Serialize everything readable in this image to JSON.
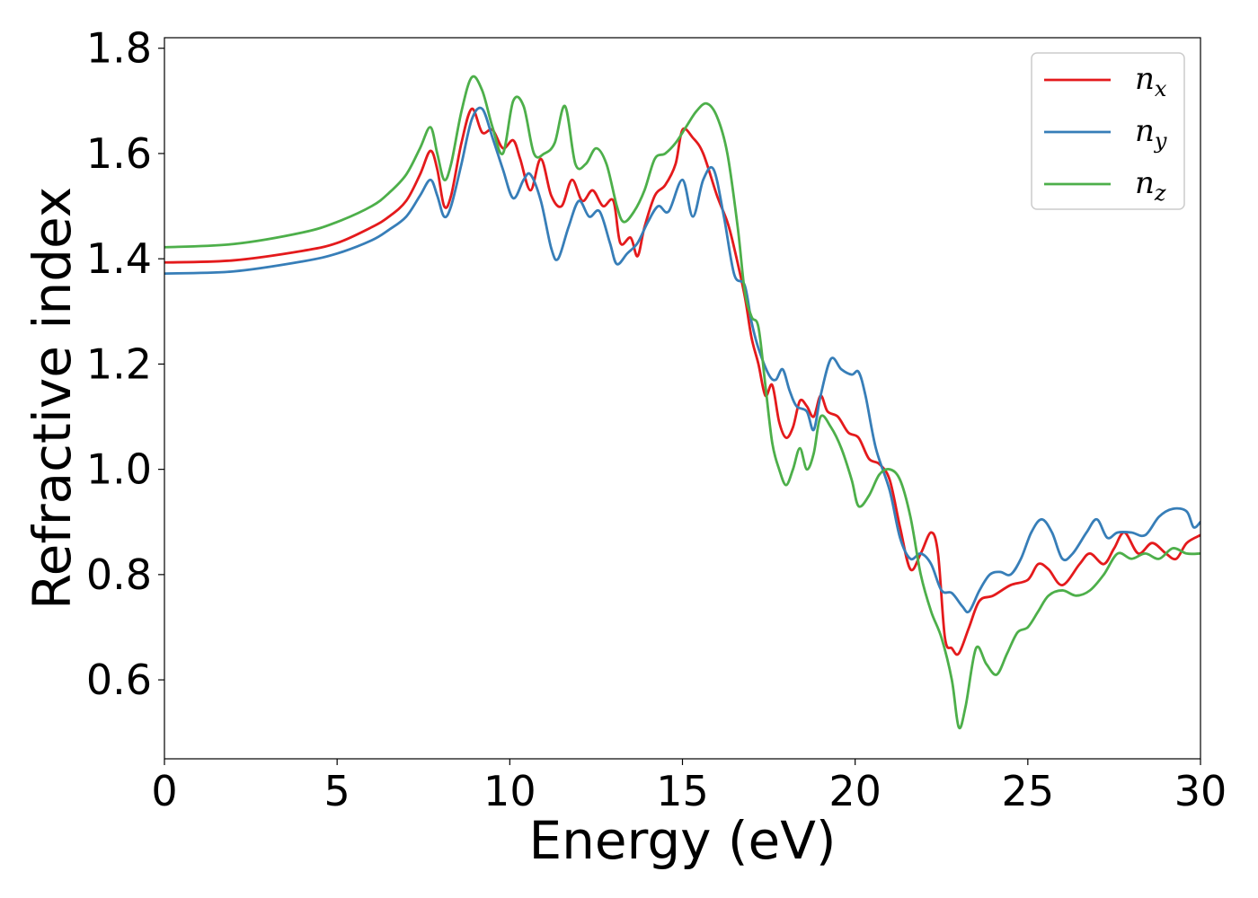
{
  "chart_data": {
    "type": "line",
    "xlabel": "Energy (eV)",
    "ylabel": "Refractive index",
    "xlim": [
      0,
      30
    ],
    "ylim": [
      0.45,
      1.82
    ],
    "xticks": [
      0,
      5,
      10,
      15,
      20,
      25,
      30
    ],
    "xtick_labels": [
      "0",
      "5",
      "10",
      "15",
      "20",
      "25",
      "30"
    ],
    "yticks": [
      0.6,
      0.8,
      1.0,
      1.2,
      1.4,
      1.6,
      1.8
    ],
    "ytick_labels": [
      "0.6",
      "0.8",
      "1.0",
      "1.2",
      "1.4",
      "1.6",
      "1.8"
    ],
    "grid": false,
    "legend_position": "top-right",
    "series": [
      {
        "name": "n",
        "subscript": "x",
        "color": "#e41a1c",
        "points": [
          [
            0,
            1.393
          ],
          [
            2,
            1.397
          ],
          [
            4,
            1.415
          ],
          [
            5,
            1.43
          ],
          [
            6,
            1.46
          ],
          [
            6.5,
            1.48
          ],
          [
            7,
            1.51
          ],
          [
            7.4,
            1.56
          ],
          [
            7.7,
            1.605
          ],
          [
            7.9,
            1.57
          ],
          [
            8.1,
            1.5
          ],
          [
            8.3,
            1.52
          ],
          [
            8.6,
            1.62
          ],
          [
            8.9,
            1.685
          ],
          [
            9.2,
            1.64
          ],
          [
            9.5,
            1.645
          ],
          [
            9.8,
            1.61
          ],
          [
            10.1,
            1.625
          ],
          [
            10.3,
            1.59
          ],
          [
            10.6,
            1.53
          ],
          [
            10.9,
            1.59
          ],
          [
            11.2,
            1.52
          ],
          [
            11.5,
            1.5
          ],
          [
            11.8,
            1.55
          ],
          [
            12.1,
            1.51
          ],
          [
            12.4,
            1.53
          ],
          [
            12.7,
            1.5
          ],
          [
            13.0,
            1.51
          ],
          [
            13.2,
            1.43
          ],
          [
            13.5,
            1.44
          ],
          [
            13.7,
            1.405
          ],
          [
            13.9,
            1.46
          ],
          [
            14.2,
            1.52
          ],
          [
            14.5,
            1.54
          ],
          [
            14.8,
            1.58
          ],
          [
            15.0,
            1.645
          ],
          [
            15.3,
            1.63
          ],
          [
            15.6,
            1.6
          ],
          [
            16.0,
            1.52
          ],
          [
            16.3,
            1.47
          ],
          [
            16.5,
            1.42
          ],
          [
            16.8,
            1.33
          ],
          [
            17.0,
            1.25
          ],
          [
            17.2,
            1.2
          ],
          [
            17.4,
            1.14
          ],
          [
            17.6,
            1.16
          ],
          [
            17.8,
            1.09
          ],
          [
            18.0,
            1.06
          ],
          [
            18.2,
            1.08
          ],
          [
            18.4,
            1.13
          ],
          [
            18.6,
            1.12
          ],
          [
            18.8,
            1.1
          ],
          [
            19.0,
            1.14
          ],
          [
            19.2,
            1.11
          ],
          [
            19.5,
            1.1
          ],
          [
            19.8,
            1.07
          ],
          [
            20.1,
            1.06
          ],
          [
            20.4,
            1.02
          ],
          [
            20.7,
            1.01
          ],
          [
            21.0,
            0.98
          ],
          [
            21.3,
            0.89
          ],
          [
            21.6,
            0.81
          ],
          [
            21.9,
            0.84
          ],
          [
            22.2,
            0.88
          ],
          [
            22.4,
            0.84
          ],
          [
            22.6,
            0.68
          ],
          [
            22.8,
            0.66
          ],
          [
            23.0,
            0.65
          ],
          [
            23.3,
            0.7
          ],
          [
            23.6,
            0.75
          ],
          [
            24.0,
            0.76
          ],
          [
            24.5,
            0.78
          ],
          [
            25.0,
            0.79
          ],
          [
            25.3,
            0.82
          ],
          [
            25.6,
            0.81
          ],
          [
            26.0,
            0.78
          ],
          [
            26.5,
            0.82
          ],
          [
            26.8,
            0.84
          ],
          [
            27.2,
            0.82
          ],
          [
            27.5,
            0.85
          ],
          [
            27.8,
            0.88
          ],
          [
            28.2,
            0.84
          ],
          [
            28.6,
            0.86
          ],
          [
            29.0,
            0.84
          ],
          [
            29.3,
            0.83
          ],
          [
            29.6,
            0.86
          ],
          [
            30,
            0.875
          ]
        ]
      },
      {
        "name": "n",
        "subscript": "y",
        "color": "#377eb8",
        "points": [
          [
            0,
            1.372
          ],
          [
            2,
            1.376
          ],
          [
            4,
            1.395
          ],
          [
            5,
            1.41
          ],
          [
            6,
            1.435
          ],
          [
            6.5,
            1.455
          ],
          [
            7,
            1.48
          ],
          [
            7.4,
            1.52
          ],
          [
            7.7,
            1.55
          ],
          [
            7.9,
            1.52
          ],
          [
            8.1,
            1.48
          ],
          [
            8.3,
            1.5
          ],
          [
            8.6,
            1.58
          ],
          [
            8.9,
            1.665
          ],
          [
            9.2,
            1.685
          ],
          [
            9.5,
            1.63
          ],
          [
            9.8,
            1.57
          ],
          [
            10.1,
            1.515
          ],
          [
            10.4,
            1.55
          ],
          [
            10.6,
            1.56
          ],
          [
            10.9,
            1.51
          ],
          [
            11.2,
            1.42
          ],
          [
            11.4,
            1.4
          ],
          [
            11.7,
            1.46
          ],
          [
            12.0,
            1.51
          ],
          [
            12.3,
            1.48
          ],
          [
            12.6,
            1.49
          ],
          [
            12.9,
            1.43
          ],
          [
            13.1,
            1.39
          ],
          [
            13.4,
            1.41
          ],
          [
            13.7,
            1.43
          ],
          [
            14.0,
            1.47
          ],
          [
            14.3,
            1.5
          ],
          [
            14.6,
            1.49
          ],
          [
            15.0,
            1.55
          ],
          [
            15.3,
            1.48
          ],
          [
            15.6,
            1.55
          ],
          [
            15.9,
            1.57
          ],
          [
            16.2,
            1.48
          ],
          [
            16.5,
            1.37
          ],
          [
            16.8,
            1.35
          ],
          [
            17.0,
            1.28
          ],
          [
            17.2,
            1.23
          ],
          [
            17.5,
            1.18
          ],
          [
            17.7,
            1.17
          ],
          [
            17.9,
            1.19
          ],
          [
            18.1,
            1.15
          ],
          [
            18.3,
            1.12
          ],
          [
            18.6,
            1.11
          ],
          [
            18.8,
            1.075
          ],
          [
            19.0,
            1.14
          ],
          [
            19.3,
            1.21
          ],
          [
            19.6,
            1.19
          ],
          [
            19.9,
            1.18
          ],
          [
            20.1,
            1.185
          ],
          [
            20.3,
            1.14
          ],
          [
            20.6,
            1.04
          ],
          [
            21.0,
            0.96
          ],
          [
            21.3,
            0.87
          ],
          [
            21.6,
            0.83
          ],
          [
            21.9,
            0.84
          ],
          [
            22.2,
            0.82
          ],
          [
            22.5,
            0.77
          ],
          [
            22.8,
            0.765
          ],
          [
            23.1,
            0.74
          ],
          [
            23.3,
            0.73
          ],
          [
            23.6,
            0.77
          ],
          [
            23.9,
            0.8
          ],
          [
            24.2,
            0.805
          ],
          [
            24.5,
            0.8
          ],
          [
            24.8,
            0.83
          ],
          [
            25.1,
            0.88
          ],
          [
            25.4,
            0.905
          ],
          [
            25.7,
            0.88
          ],
          [
            26.0,
            0.83
          ],
          [
            26.3,
            0.84
          ],
          [
            26.7,
            0.88
          ],
          [
            27.0,
            0.905
          ],
          [
            27.3,
            0.87
          ],
          [
            27.6,
            0.88
          ],
          [
            28.0,
            0.88
          ],
          [
            28.4,
            0.875
          ],
          [
            28.8,
            0.91
          ],
          [
            29.2,
            0.925
          ],
          [
            29.6,
            0.92
          ],
          [
            29.8,
            0.89
          ],
          [
            30,
            0.9
          ]
        ]
      },
      {
        "name": "n",
        "subscript": "z",
        "color": "#4daf4a",
        "points": [
          [
            0,
            1.422
          ],
          [
            2,
            1.428
          ],
          [
            4,
            1.45
          ],
          [
            5,
            1.47
          ],
          [
            6,
            1.5
          ],
          [
            6.5,
            1.525
          ],
          [
            7,
            1.56
          ],
          [
            7.4,
            1.61
          ],
          [
            7.7,
            1.65
          ],
          [
            7.9,
            1.6
          ],
          [
            8.1,
            1.55
          ],
          [
            8.3,
            1.58
          ],
          [
            8.6,
            1.68
          ],
          [
            8.9,
            1.745
          ],
          [
            9.2,
            1.72
          ],
          [
            9.5,
            1.65
          ],
          [
            9.8,
            1.6
          ],
          [
            10.1,
            1.7
          ],
          [
            10.4,
            1.69
          ],
          [
            10.7,
            1.6
          ],
          [
            11.0,
            1.6
          ],
          [
            11.3,
            1.62
          ],
          [
            11.6,
            1.69
          ],
          [
            11.9,
            1.58
          ],
          [
            12.2,
            1.58
          ],
          [
            12.5,
            1.61
          ],
          [
            12.8,
            1.58
          ],
          [
            13.1,
            1.5
          ],
          [
            13.3,
            1.47
          ],
          [
            13.6,
            1.49
          ],
          [
            13.9,
            1.53
          ],
          [
            14.2,
            1.59
          ],
          [
            14.5,
            1.6
          ],
          [
            14.8,
            1.62
          ],
          [
            15.1,
            1.65
          ],
          [
            15.4,
            1.68
          ],
          [
            15.7,
            1.695
          ],
          [
            16.0,
            1.67
          ],
          [
            16.3,
            1.6
          ],
          [
            16.6,
            1.46
          ],
          [
            16.8,
            1.34
          ],
          [
            17.0,
            1.29
          ],
          [
            17.2,
            1.27
          ],
          [
            17.4,
            1.16
          ],
          [
            17.6,
            1.05
          ],
          [
            17.8,
            1.0
          ],
          [
            18.0,
            0.97
          ],
          [
            18.2,
            1.0
          ],
          [
            18.4,
            1.04
          ],
          [
            18.6,
            1.0
          ],
          [
            18.8,
            1.03
          ],
          [
            19.0,
            1.1
          ],
          [
            19.3,
            1.08
          ],
          [
            19.6,
            1.04
          ],
          [
            19.9,
            0.98
          ],
          [
            20.1,
            0.93
          ],
          [
            20.4,
            0.95
          ],
          [
            20.7,
            0.99
          ],
          [
            21.0,
            1.0
          ],
          [
            21.3,
            0.98
          ],
          [
            21.6,
            0.91
          ],
          [
            21.9,
            0.8
          ],
          [
            22.2,
            0.73
          ],
          [
            22.5,
            0.68
          ],
          [
            22.8,
            0.6
          ],
          [
            23.0,
            0.51
          ],
          [
            23.2,
            0.55
          ],
          [
            23.5,
            0.66
          ],
          [
            23.8,
            0.63
          ],
          [
            24.1,
            0.61
          ],
          [
            24.4,
            0.65
          ],
          [
            24.7,
            0.69
          ],
          [
            25.0,
            0.7
          ],
          [
            25.3,
            0.73
          ],
          [
            25.6,
            0.76
          ],
          [
            26.0,
            0.77
          ],
          [
            26.4,
            0.76
          ],
          [
            26.8,
            0.77
          ],
          [
            27.2,
            0.8
          ],
          [
            27.6,
            0.84
          ],
          [
            28.0,
            0.83
          ],
          [
            28.4,
            0.84
          ],
          [
            28.8,
            0.83
          ],
          [
            29.2,
            0.85
          ],
          [
            29.6,
            0.84
          ],
          [
            30,
            0.84
          ]
        ]
      }
    ]
  }
}
